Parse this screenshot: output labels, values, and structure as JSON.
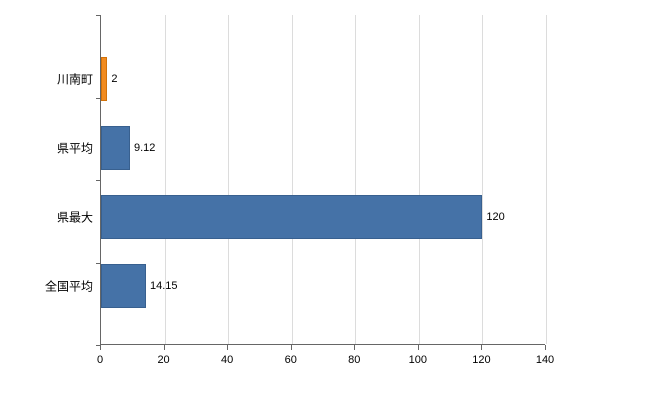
{
  "chart_data": {
    "type": "bar",
    "orientation": "horizontal",
    "title": "",
    "xlabel": "",
    "ylabel": "",
    "legend": "none",
    "grid": "vertical",
    "categories": [
      "川南町",
      "県平均",
      "県最大",
      "全国平均"
    ],
    "values": [
      2,
      9.12,
      120,
      14.15
    ],
    "value_labels": [
      "2",
      "9.12",
      "120",
      "14.15"
    ],
    "bar_colors": [
      "#f28b1f",
      "#4572a7",
      "#4572a7",
      "#4572a7"
    ],
    "bar_borders": [
      "#d1720a",
      "#38608f",
      "#38608f",
      "#38608f"
    ],
    "xlim": [
      0,
      140
    ],
    "x_ticks": [
      0,
      20,
      40,
      60,
      80,
      100,
      120,
      140
    ],
    "background": "#ffffff",
    "gridline_color": "#dcdcdc",
    "axis_color": "#666666"
  }
}
